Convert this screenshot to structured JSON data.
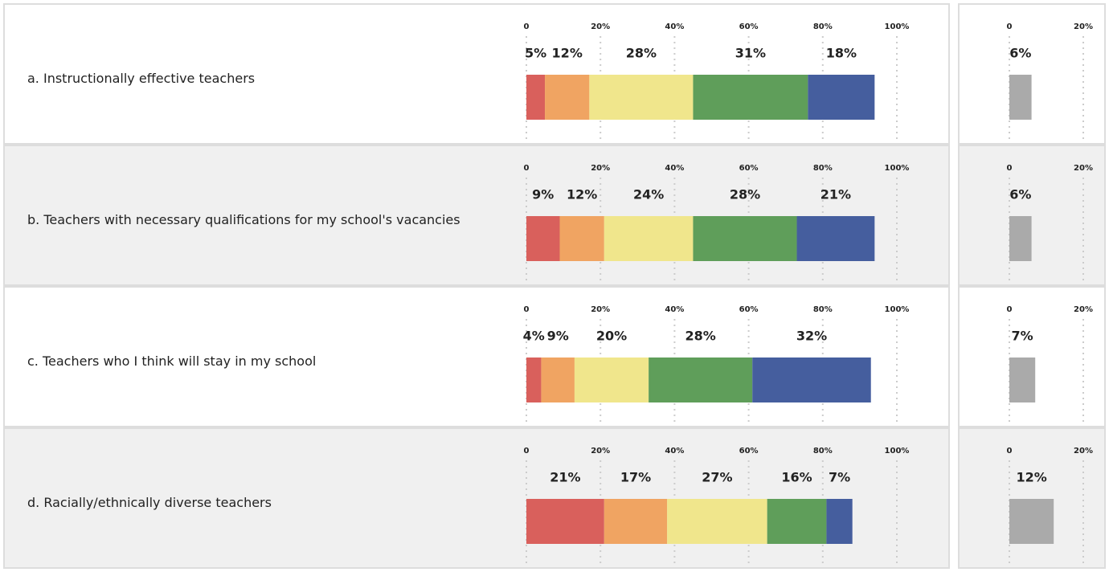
{
  "chart_data": [
    {
      "type": "stacked-bar",
      "categories": [
        "a. Instructionally effective teachers",
        "b. Teachers with necessary qualifications for my school's vacancies",
        "c. Teachers who I think will stay in my school",
        "d. Racially/ethnically diverse teachers"
      ],
      "series": [
        {
          "color": "#d9605c",
          "values": [
            5,
            9,
            4,
            21
          ],
          "value_labels": [
            "5%",
            "9%",
            "4%",
            "21%"
          ]
        },
        {
          "color": "#f0a462",
          "values": [
            12,
            12,
            9,
            17
          ],
          "value_labels": [
            "12%",
            "12%",
            "9%",
            "17%"
          ]
        },
        {
          "color": "#f0e68c",
          "values": [
            28,
            24,
            20,
            27
          ],
          "value_labels": [
            "28%",
            "24%",
            "20%",
            "27%"
          ]
        },
        {
          "color": "#5f9e5a",
          "values": [
            31,
            28,
            28,
            16
          ],
          "value_labels": [
            "31%",
            "28%",
            "28%",
            "16%"
          ]
        },
        {
          "color": "#455e9e",
          "values": [
            18,
            21,
            32,
            7
          ],
          "value_labels": [
            "18%",
            "21%",
            "32%",
            "7%"
          ]
        }
      ],
      "xlim": [
        0,
        100
      ],
      "xticks": [
        0,
        {
          "value": 20,
          "label": "20%"
        },
        {
          "value": 40,
          "label": "40%"
        },
        {
          "value": 60,
          "label": "60%"
        },
        {
          "value": 80,
          "label": "80%"
        },
        {
          "value": 100,
          "label": "100%"
        }
      ],
      "grid": true
    },
    {
      "type": "bar",
      "values": [
        6,
        6,
        7,
        12
      ],
      "value_labels": [
        "6%",
        "6%",
        "7%",
        "12%"
      ],
      "color": "#aaaaaa",
      "xlim": [
        0,
        20
      ],
      "xticks": [
        0,
        {
          "value": 20,
          "label": "20%"
        }
      ],
      "grid": true
    }
  ]
}
